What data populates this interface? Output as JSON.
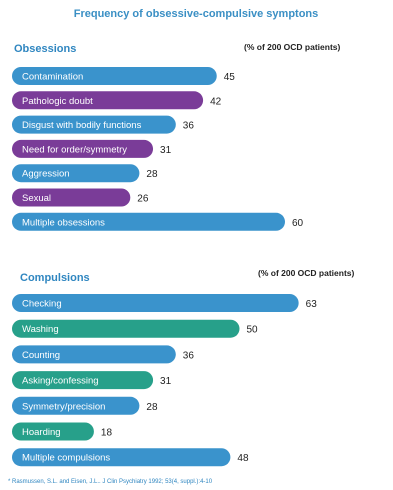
{
  "chart_data": {
    "type": "bar",
    "orientation": "horizontal",
    "title": "Frequency of obsessive-compulsive symptons",
    "source": "* Rasmussen, S.L. and Eisen, J.L.. J Clin Psychiatry 1992; 53(4, suppl.):4-10",
    "xlim": [
      0,
      70
    ],
    "grid": false,
    "groups": [
      {
        "name": "Obsessions",
        "unit_label": "(% of 200 OCD patients)",
        "categories": [
          "Contamination",
          "Pathologic doubt",
          "Disgust with bodily functions",
          "Need for order/symmetry",
          "Aggression",
          "Sexual",
          "Multiple obsessions"
        ],
        "values": [
          45,
          42,
          36,
          31,
          28,
          26,
          60
        ],
        "colors": [
          "#3a93cc",
          "#7a3c98",
          "#3a93cc",
          "#7a3c98",
          "#3a93cc",
          "#7a3c98",
          "#3a93cc"
        ]
      },
      {
        "name": "Compulsions",
        "unit_label": "(% of 200 OCD patients)",
        "categories": [
          "Checking",
          "Washing",
          "Counting",
          "Asking/confessing",
          "Symmetry/precision",
          "Hoarding",
          "Multiple compulsions"
        ],
        "values": [
          63,
          50,
          36,
          31,
          28,
          18,
          48
        ],
        "colors": [
          "#3a93cc",
          "#27a08a",
          "#3a93cc",
          "#27a08a",
          "#3a93cc",
          "#27a08a",
          "#3a93cc"
        ]
      }
    ]
  }
}
